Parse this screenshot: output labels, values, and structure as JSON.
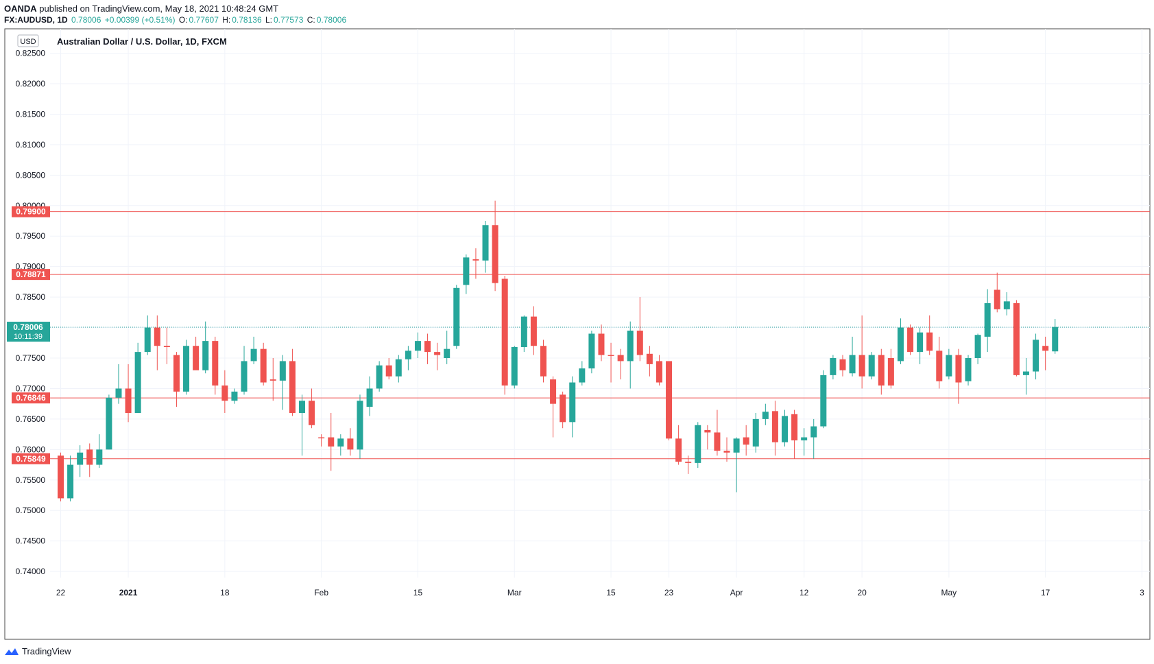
{
  "header": {
    "publisher": "OANDA",
    "published_text": "published on TradingView.com, May 18, 2021 10:48:24 GMT",
    "symbol": "FX:AUDUSD, 1D",
    "last": "0.78006",
    "change": "+0.00399 (+0.51%)",
    "o_label": "O:",
    "o_value": "0.77607",
    "h_label": "H:",
    "h_value": "0.78136",
    "l_label": "L:",
    "l_value": "0.77573",
    "c_label": "C:",
    "c_value": "0.78006"
  },
  "footer": {
    "brand": "TradingView"
  },
  "colors": {
    "up": "#26a69a",
    "down": "#ef5350",
    "level": "#ef5350",
    "grid": "#f0f3fa",
    "axis_text": "#131722"
  },
  "chart_data": {
    "type": "candlestick",
    "title": "Australian Dollar / U.S. Dollar, 1D, FXCM",
    "currency_badge": "USD",
    "ylim": [
      0.739,
      0.829
    ],
    "yticks": [
      "0.82500",
      "0.82000",
      "0.81500",
      "0.81000",
      "0.80500",
      "0.80000",
      "0.79500",
      "0.79000",
      "0.78500",
      "0.78000",
      "0.77500",
      "0.77000",
      "0.76500",
      "0.76000",
      "0.75500",
      "0.75000",
      "0.74500",
      "0.74000"
    ],
    "xticks": [
      {
        "label": "22",
        "index": 0
      },
      {
        "label": "2021",
        "index": 7,
        "bold": true
      },
      {
        "label": "18",
        "index": 17
      },
      {
        "label": "Feb",
        "index": 27
      },
      {
        "label": "15",
        "index": 37
      },
      {
        "label": "Mar",
        "index": 47
      },
      {
        "label": "15",
        "index": 57
      },
      {
        "label": "23",
        "index": 63
      },
      {
        "label": "Apr",
        "index": 70
      },
      {
        "label": "12",
        "index": 77
      },
      {
        "label": "20",
        "index": 83
      },
      {
        "label": "May",
        "index": 92
      },
      {
        "label": "17",
        "index": 102
      },
      {
        "label": "3",
        "index": 112
      }
    ],
    "levels": [
      "0.79900",
      "0.78871",
      "0.76846",
      "0.75849"
    ],
    "current_price": "0.78006",
    "countdown": "10:11:39",
    "candles": [
      {
        "o": 0.759,
        "h": 0.7595,
        "l": 0.7515,
        "c": 0.752
      },
      {
        "o": 0.752,
        "h": 0.759,
        "l": 0.7515,
        "c": 0.7575
      },
      {
        "o": 0.7575,
        "h": 0.7607,
        "l": 0.7555,
        "c": 0.7595
      },
      {
        "o": 0.76,
        "h": 0.761,
        "l": 0.7555,
        "c": 0.7575
      },
      {
        "o": 0.7575,
        "h": 0.7625,
        "l": 0.757,
        "c": 0.76
      },
      {
        "o": 0.76,
        "h": 0.769,
        "l": 0.76,
        "c": 0.7685
      },
      {
        "o": 0.7685,
        "h": 0.774,
        "l": 0.7675,
        "c": 0.77
      },
      {
        "o": 0.77,
        "h": 0.774,
        "l": 0.7645,
        "c": 0.766
      },
      {
        "o": 0.766,
        "h": 0.7775,
        "l": 0.766,
        "c": 0.776
      },
      {
        "o": 0.776,
        "h": 0.782,
        "l": 0.7755,
        "c": 0.78
      },
      {
        "o": 0.78,
        "h": 0.782,
        "l": 0.773,
        "c": 0.777
      },
      {
        "o": 0.777,
        "h": 0.78,
        "l": 0.774,
        "c": 0.7768
      },
      {
        "o": 0.7755,
        "h": 0.776,
        "l": 0.767,
        "c": 0.7695
      },
      {
        "o": 0.7695,
        "h": 0.778,
        "l": 0.769,
        "c": 0.777
      },
      {
        "o": 0.777,
        "h": 0.7785,
        "l": 0.7735,
        "c": 0.773
      },
      {
        "o": 0.773,
        "h": 0.781,
        "l": 0.7725,
        "c": 0.7778
      },
      {
        "o": 0.7778,
        "h": 0.7785,
        "l": 0.769,
        "c": 0.7705
      },
      {
        "o": 0.7705,
        "h": 0.773,
        "l": 0.766,
        "c": 0.768
      },
      {
        "o": 0.768,
        "h": 0.77,
        "l": 0.7675,
        "c": 0.7695
      },
      {
        "o": 0.7695,
        "h": 0.777,
        "l": 0.769,
        "c": 0.7745
      },
      {
        "o": 0.7745,
        "h": 0.7785,
        "l": 0.774,
        "c": 0.7765
      },
      {
        "o": 0.7765,
        "h": 0.7775,
        "l": 0.7705,
        "c": 0.771
      },
      {
        "o": 0.7715,
        "h": 0.775,
        "l": 0.768,
        "c": 0.7713
      },
      {
        "o": 0.7713,
        "h": 0.7755,
        "l": 0.7665,
        "c": 0.7745
      },
      {
        "o": 0.7745,
        "h": 0.7765,
        "l": 0.7655,
        "c": 0.766
      },
      {
        "o": 0.766,
        "h": 0.769,
        "l": 0.759,
        "c": 0.768
      },
      {
        "o": 0.768,
        "h": 0.77,
        "l": 0.7635,
        "c": 0.764
      },
      {
        "o": 0.762,
        "h": 0.7625,
        "l": 0.7605,
        "c": 0.7619
      },
      {
        "o": 0.762,
        "h": 0.766,
        "l": 0.7565,
        "c": 0.7605
      },
      {
        "o": 0.7605,
        "h": 0.7625,
        "l": 0.759,
        "c": 0.7618
      },
      {
        "o": 0.7618,
        "h": 0.7635,
        "l": 0.759,
        "c": 0.76
      },
      {
        "o": 0.76,
        "h": 0.769,
        "l": 0.7585,
        "c": 0.768
      },
      {
        "o": 0.767,
        "h": 0.772,
        "l": 0.7655,
        "c": 0.77
      },
      {
        "o": 0.77,
        "h": 0.7745,
        "l": 0.7695,
        "c": 0.7738
      },
      {
        "o": 0.7738,
        "h": 0.775,
        "l": 0.7715,
        "c": 0.772
      },
      {
        "o": 0.772,
        "h": 0.7755,
        "l": 0.771,
        "c": 0.7748
      },
      {
        "o": 0.7748,
        "h": 0.777,
        "l": 0.773,
        "c": 0.7762
      },
      {
        "o": 0.7762,
        "h": 0.7792,
        "l": 0.775,
        "c": 0.7778
      },
      {
        "o": 0.7778,
        "h": 0.779,
        "l": 0.774,
        "c": 0.776
      },
      {
        "o": 0.776,
        "h": 0.7775,
        "l": 0.773,
        "c": 0.7755
      },
      {
        "o": 0.775,
        "h": 0.7795,
        "l": 0.774,
        "c": 0.7765
      },
      {
        "o": 0.777,
        "h": 0.787,
        "l": 0.7765,
        "c": 0.7865
      },
      {
        "o": 0.787,
        "h": 0.792,
        "l": 0.7855,
        "c": 0.7915
      },
      {
        "o": 0.7912,
        "h": 0.793,
        "l": 0.788,
        "c": 0.791
      },
      {
        "o": 0.791,
        "h": 0.7975,
        "l": 0.789,
        "c": 0.7968
      },
      {
        "o": 0.7968,
        "h": 0.8008,
        "l": 0.786,
        "c": 0.7873
      },
      {
        "o": 0.788,
        "h": 0.7885,
        "l": 0.769,
        "c": 0.7705
      },
      {
        "o": 0.7705,
        "h": 0.777,
        "l": 0.77,
        "c": 0.7768
      },
      {
        "o": 0.7768,
        "h": 0.782,
        "l": 0.776,
        "c": 0.7818
      },
      {
        "o": 0.7818,
        "h": 0.7835,
        "l": 0.7755,
        "c": 0.777
      },
      {
        "o": 0.777,
        "h": 0.778,
        "l": 0.771,
        "c": 0.772
      },
      {
        "o": 0.7715,
        "h": 0.772,
        "l": 0.762,
        "c": 0.7675
      },
      {
        "o": 0.769,
        "h": 0.7695,
        "l": 0.7635,
        "c": 0.7645
      },
      {
        "o": 0.7645,
        "h": 0.772,
        "l": 0.762,
        "c": 0.771
      },
      {
        "o": 0.771,
        "h": 0.7745,
        "l": 0.7705,
        "c": 0.7733
      },
      {
        "o": 0.7733,
        "h": 0.7795,
        "l": 0.7725,
        "c": 0.779
      },
      {
        "o": 0.779,
        "h": 0.7805,
        "l": 0.7745,
        "c": 0.7755
      },
      {
        "o": 0.7755,
        "h": 0.7775,
        "l": 0.771,
        "c": 0.7754
      },
      {
        "o": 0.7755,
        "h": 0.7765,
        "l": 0.7715,
        "c": 0.7745
      },
      {
        "o": 0.7745,
        "h": 0.781,
        "l": 0.77,
        "c": 0.7795
      },
      {
        "o": 0.7795,
        "h": 0.785,
        "l": 0.7745,
        "c": 0.7755
      },
      {
        "o": 0.7757,
        "h": 0.777,
        "l": 0.772,
        "c": 0.774
      },
      {
        "o": 0.7745,
        "h": 0.7755,
        "l": 0.7705,
        "c": 0.771
      },
      {
        "o": 0.7745,
        "h": 0.7745,
        "l": 0.7615,
        "c": 0.7618
      },
      {
        "o": 0.7618,
        "h": 0.764,
        "l": 0.7575,
        "c": 0.758
      },
      {
        "o": 0.758,
        "h": 0.759,
        "l": 0.756,
        "c": 0.7578
      },
      {
        "o": 0.7578,
        "h": 0.7645,
        "l": 0.757,
        "c": 0.764
      },
      {
        "o": 0.7632,
        "h": 0.764,
        "l": 0.76,
        "c": 0.7628
      },
      {
        "o": 0.7628,
        "h": 0.7665,
        "l": 0.759,
        "c": 0.7598
      },
      {
        "o": 0.7598,
        "h": 0.762,
        "l": 0.758,
        "c": 0.7595
      },
      {
        "o": 0.7595,
        "h": 0.762,
        "l": 0.753,
        "c": 0.7618
      },
      {
        "o": 0.762,
        "h": 0.764,
        "l": 0.759,
        "c": 0.7608
      },
      {
        "o": 0.7605,
        "h": 0.766,
        "l": 0.7595,
        "c": 0.765
      },
      {
        "o": 0.765,
        "h": 0.7675,
        "l": 0.764,
        "c": 0.7662
      },
      {
        "o": 0.7663,
        "h": 0.768,
        "l": 0.759,
        "c": 0.7612
      },
      {
        "o": 0.7612,
        "h": 0.7665,
        "l": 0.7605,
        "c": 0.7655
      },
      {
        "o": 0.7658,
        "h": 0.7665,
        "l": 0.7585,
        "c": 0.7615
      },
      {
        "o": 0.7615,
        "h": 0.7635,
        "l": 0.759,
        "c": 0.762
      },
      {
        "o": 0.762,
        "h": 0.765,
        "l": 0.7585,
        "c": 0.7638
      },
      {
        "o": 0.7638,
        "h": 0.773,
        "l": 0.7635,
        "c": 0.7722
      },
      {
        "o": 0.7722,
        "h": 0.7755,
        "l": 0.7715,
        "c": 0.775
      },
      {
        "o": 0.7748,
        "h": 0.7755,
        "l": 0.772,
        "c": 0.773
      },
      {
        "o": 0.7725,
        "h": 0.7785,
        "l": 0.772,
        "c": 0.7755
      },
      {
        "o": 0.7755,
        "h": 0.782,
        "l": 0.77,
        "c": 0.772
      },
      {
        "o": 0.772,
        "h": 0.776,
        "l": 0.7715,
        "c": 0.7755
      },
      {
        "o": 0.7755,
        "h": 0.7765,
        "l": 0.769,
        "c": 0.7705
      },
      {
        "o": 0.775,
        "h": 0.7765,
        "l": 0.77,
        "c": 0.7705
      },
      {
        "o": 0.7745,
        "h": 0.7815,
        "l": 0.774,
        "c": 0.78
      },
      {
        "o": 0.78,
        "h": 0.7805,
        "l": 0.7755,
        "c": 0.776
      },
      {
        "o": 0.776,
        "h": 0.78,
        "l": 0.774,
        "c": 0.7792
      },
      {
        "o": 0.7792,
        "h": 0.782,
        "l": 0.7755,
        "c": 0.7762
      },
      {
        "o": 0.7762,
        "h": 0.7785,
        "l": 0.77,
        "c": 0.7712
      },
      {
        "o": 0.772,
        "h": 0.7765,
        "l": 0.7715,
        "c": 0.7755
      },
      {
        "o": 0.7755,
        "h": 0.7765,
        "l": 0.7675,
        "c": 0.771
      },
      {
        "o": 0.7712,
        "h": 0.7755,
        "l": 0.7705,
        "c": 0.775
      },
      {
        "o": 0.775,
        "h": 0.779,
        "l": 0.774,
        "c": 0.7788
      },
      {
        "o": 0.7785,
        "h": 0.7863,
        "l": 0.776,
        "c": 0.784
      },
      {
        "o": 0.7862,
        "h": 0.789,
        "l": 0.7825,
        "c": 0.783
      },
      {
        "o": 0.783,
        "h": 0.7858,
        "l": 0.782,
        "c": 0.7843
      },
      {
        "o": 0.784,
        "h": 0.7845,
        "l": 0.772,
        "c": 0.7722
      },
      {
        "o": 0.7722,
        "h": 0.775,
        "l": 0.769,
        "c": 0.7728
      },
      {
        "o": 0.7728,
        "h": 0.779,
        "l": 0.7715,
        "c": 0.778
      },
      {
        "o": 0.777,
        "h": 0.7785,
        "l": 0.773,
        "c": 0.7762
      },
      {
        "o": 0.7761,
        "h": 0.7814,
        "l": 0.7757,
        "c": 0.7801
      }
    ]
  }
}
